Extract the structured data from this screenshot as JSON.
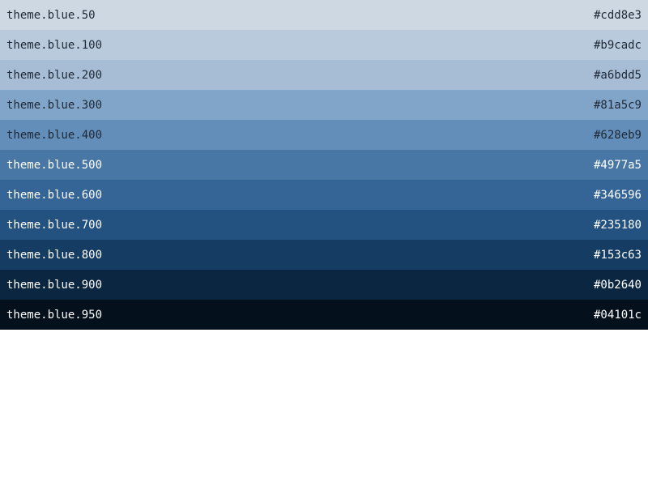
{
  "palette": {
    "swatches": [
      {
        "name": "theme.blue.50",
        "hex": "#cdd8e3",
        "text_color": "#1f2937"
      },
      {
        "name": "theme.blue.100",
        "hex": "#b9cadc",
        "text_color": "#1f2937"
      },
      {
        "name": "theme.blue.200",
        "hex": "#a6bdd5",
        "text_color": "#1f2937"
      },
      {
        "name": "theme.blue.300",
        "hex": "#81a5c9",
        "text_color": "#1f2937"
      },
      {
        "name": "theme.blue.400",
        "hex": "#628eb9",
        "text_color": "#1f2937"
      },
      {
        "name": "theme.blue.500",
        "hex": "#4977a5",
        "text_color": "#ffffff"
      },
      {
        "name": "theme.blue.600",
        "hex": "#346596",
        "text_color": "#ffffff"
      },
      {
        "name": "theme.blue.700",
        "hex": "#235180",
        "text_color": "#ffffff"
      },
      {
        "name": "theme.blue.800",
        "hex": "#153c63",
        "text_color": "#ffffff"
      },
      {
        "name": "theme.blue.900",
        "hex": "#0b2640",
        "text_color": "#ffffff"
      },
      {
        "name": "theme.blue.950",
        "hex": "#04101c",
        "text_color": "#ffffff"
      }
    ]
  }
}
